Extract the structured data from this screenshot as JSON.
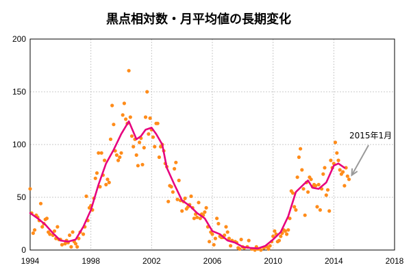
{
  "chart_data": {
    "type": "scatter",
    "title": "黒点相対数・月平均値の長期変化",
    "xlabel": "",
    "ylabel": "",
    "xlim": [
      1994,
      2018
    ],
    "ylim": [
      0,
      200
    ],
    "xticks": [
      1994,
      1998,
      2002,
      2006,
      2010,
      2014,
      2018
    ],
    "yticks": [
      0,
      50,
      100,
      150,
      200
    ],
    "grid": true,
    "colors": {
      "points": "#ff8c1a",
      "line": "#e6007e",
      "arrow": "#999999"
    },
    "annotation": {
      "text": "2015年1月",
      "x": 2015.0,
      "y": 67
    },
    "series": [
      {
        "kind": "points",
        "points": [
          [
            1994.0,
            58
          ],
          [
            1994.1,
            35
          ],
          [
            1994.2,
            16
          ],
          [
            1994.3,
            19
          ],
          [
            1994.4,
            33
          ],
          [
            1994.5,
            31
          ],
          [
            1994.6,
            28
          ],
          [
            1994.7,
            44
          ],
          [
            1994.8,
            22
          ],
          [
            1994.9,
            25
          ],
          [
            1995.0,
            29
          ],
          [
            1995.1,
            30
          ],
          [
            1995.2,
            17
          ],
          [
            1995.3,
            15
          ],
          [
            1995.5,
            14
          ],
          [
            1995.6,
            18
          ],
          [
            1995.7,
            11
          ],
          [
            1995.8,
            22
          ],
          [
            1995.9,
            10
          ],
          [
            1996.0,
            10
          ],
          [
            1996.1,
            5
          ],
          [
            1996.3,
            6
          ],
          [
            1996.4,
            9
          ],
          [
            1996.5,
            7
          ],
          [
            1996.6,
            14
          ],
          [
            1996.7,
            3
          ],
          [
            1996.8,
            17
          ],
          [
            1996.9,
            8
          ],
          [
            1997.0,
            6
          ],
          [
            1997.1,
            3
          ],
          [
            1997.2,
            11
          ],
          [
            1997.3,
            17
          ],
          [
            1997.5,
            15
          ],
          [
            1997.6,
            22
          ],
          [
            1997.7,
            51
          ],
          [
            1997.8,
            28
          ],
          [
            1997.9,
            40
          ],
          [
            1998.0,
            42
          ],
          [
            1998.1,
            38
          ],
          [
            1998.2,
            49
          ],
          [
            1998.3,
            68
          ],
          [
            1998.4,
            73
          ],
          [
            1998.5,
            92
          ],
          [
            1998.6,
            60
          ],
          [
            1998.7,
            92
          ],
          [
            1998.8,
            71
          ],
          [
            1998.9,
            85
          ],
          [
            1999.0,
            62
          ],
          [
            1999.1,
            67
          ],
          [
            1999.2,
            64
          ],
          [
            1999.3,
            105
          ],
          [
            1999.4,
            137
          ],
          [
            1999.5,
            119
          ],
          [
            1999.6,
            94
          ],
          [
            1999.7,
            90
          ],
          [
            1999.8,
            85
          ],
          [
            1999.9,
            88
          ],
          [
            2000.0,
            92
          ],
          [
            2000.1,
            128
          ],
          [
            2000.2,
            139
          ],
          [
            2000.3,
            124
          ],
          [
            2000.4,
            120
          ],
          [
            2000.5,
            170
          ],
          [
            2000.6,
            126
          ],
          [
            2000.7,
            108
          ],
          [
            2000.8,
            98
          ],
          [
            2000.9,
            105
          ],
          [
            2001.0,
            90
          ],
          [
            2001.1,
            80
          ],
          [
            2001.2,
            102
          ],
          [
            2001.3,
            106
          ],
          [
            2001.4,
            81
          ],
          [
            2001.5,
            97
          ],
          [
            2001.6,
            126
          ],
          [
            2001.7,
            150
          ],
          [
            2001.8,
            110
          ],
          [
            2001.9,
            125
          ],
          [
            2002.0,
            114
          ],
          [
            2002.1,
            107
          ],
          [
            2002.2,
            98
          ],
          [
            2002.3,
            120
          ],
          [
            2002.4,
            120
          ],
          [
            2002.5,
            88
          ],
          [
            2002.6,
            98
          ],
          [
            2002.7,
            100
          ],
          [
            2002.8,
            94
          ],
          [
            2002.9,
            82
          ],
          [
            2003.0,
            79
          ],
          [
            2003.1,
            46
          ],
          [
            2003.2,
            61
          ],
          [
            2003.3,
            60
          ],
          [
            2003.4,
            55
          ],
          [
            2003.5,
            77
          ],
          [
            2003.6,
            83
          ],
          [
            2003.7,
            48
          ],
          [
            2003.8,
            66
          ],
          [
            2003.9,
            47
          ],
          [
            2004.0,
            37
          ],
          [
            2004.1,
            46
          ],
          [
            2004.2,
            49
          ],
          [
            2004.3,
            39
          ],
          [
            2004.4,
            41
          ],
          [
            2004.5,
            43
          ],
          [
            2004.6,
            51
          ],
          [
            2004.7,
            40
          ],
          [
            2004.8,
            30
          ],
          [
            2004.9,
            34
          ],
          [
            2005.0,
            31
          ],
          [
            2005.1,
            45
          ],
          [
            2005.2,
            30
          ],
          [
            2005.3,
            34
          ],
          [
            2005.4,
            33
          ],
          [
            2005.5,
            36
          ],
          [
            2005.6,
            40
          ],
          [
            2005.7,
            22
          ],
          [
            2005.8,
            8
          ],
          [
            2005.9,
            17
          ],
          [
            2006.0,
            15
          ],
          [
            2006.1,
            5
          ],
          [
            2006.2,
            11
          ],
          [
            2006.3,
            30
          ],
          [
            2006.4,
            25
          ],
          [
            2006.5,
            13
          ],
          [
            2006.6,
            12
          ],
          [
            2006.7,
            12
          ],
          [
            2006.8,
            14
          ],
          [
            2006.9,
            22
          ],
          [
            2007.0,
            17
          ],
          [
            2007.1,
            11
          ],
          [
            2007.2,
            4
          ],
          [
            2007.3,
            9
          ],
          [
            2007.5,
            8
          ],
          [
            2007.6,
            7
          ],
          [
            2007.7,
            2
          ],
          [
            2007.8,
            1
          ],
          [
            2007.9,
            10
          ],
          [
            2008.0,
            3
          ],
          [
            2008.1,
            2
          ],
          [
            2008.3,
            3
          ],
          [
            2008.4,
            9
          ],
          [
            2008.6,
            1
          ],
          [
            2008.8,
            0
          ],
          [
            2008.9,
            3
          ],
          [
            2009.0,
            1
          ],
          [
            2009.2,
            0
          ],
          [
            2009.4,
            2
          ],
          [
            2009.6,
            3
          ],
          [
            2009.7,
            1
          ],
          [
            2009.8,
            4
          ],
          [
            2009.9,
            8
          ],
          [
            2010.0,
            13
          ],
          [
            2010.1,
            18
          ],
          [
            2010.2,
            15
          ],
          [
            2010.3,
            8
          ],
          [
            2010.4,
            9
          ],
          [
            2010.5,
            13
          ],
          [
            2010.6,
            16
          ],
          [
            2010.7,
            19
          ],
          [
            2010.8,
            18
          ],
          [
            2010.9,
            15
          ],
          [
            2011.0,
            19
          ],
          [
            2011.1,
            30
          ],
          [
            2011.2,
            56
          ],
          [
            2011.3,
            54
          ],
          [
            2011.4,
            41
          ],
          [
            2011.5,
            38
          ],
          [
            2011.6,
            69
          ],
          [
            2011.7,
            88
          ],
          [
            2011.8,
            96
          ],
          [
            2011.9,
            76
          ],
          [
            2012.0,
            58
          ],
          [
            2012.1,
            33
          ],
          [
            2012.2,
            64
          ],
          [
            2012.3,
            55
          ],
          [
            2012.4,
            69
          ],
          [
            2012.5,
            67
          ],
          [
            2012.6,
            60
          ],
          [
            2012.7,
            62
          ],
          [
            2012.8,
            61
          ],
          [
            2012.9,
            41
          ],
          [
            2013.0,
            62
          ],
          [
            2013.1,
            38
          ],
          [
            2013.2,
            58
          ],
          [
            2013.3,
            72
          ],
          [
            2013.4,
            78
          ],
          [
            2013.5,
            52
          ],
          [
            2013.6,
            57
          ],
          [
            2013.7,
            37
          ],
          [
            2013.8,
            85
          ],
          [
            2013.9,
            78
          ],
          [
            2014.0,
            82
          ],
          [
            2014.1,
            102
          ],
          [
            2014.2,
            92
          ],
          [
            2014.3,
            85
          ],
          [
            2014.4,
            76
          ],
          [
            2014.5,
            72
          ],
          [
            2014.6,
            74
          ],
          [
            2014.7,
            61
          ],
          [
            2014.8,
            78
          ],
          [
            2014.9,
            70
          ],
          [
            2015.0,
            67
          ]
        ]
      },
      {
        "kind": "line",
        "points": [
          [
            1994.0,
            35
          ],
          [
            1994.5,
            30
          ],
          [
            1995.0,
            24
          ],
          [
            1995.5,
            16
          ],
          [
            1996.0,
            9
          ],
          [
            1996.5,
            8
          ],
          [
            1997.0,
            10
          ],
          [
            1997.5,
            22
          ],
          [
            1998.0,
            38
          ],
          [
            1998.5,
            62
          ],
          [
            1999.0,
            82
          ],
          [
            1999.5,
            95
          ],
          [
            2000.0,
            110
          ],
          [
            2000.5,
            122
          ],
          [
            2001.0,
            105
          ],
          [
            2001.3,
            108
          ],
          [
            2001.6,
            114
          ],
          [
            2002.0,
            116
          ],
          [
            2002.3,
            110
          ],
          [
            2002.7,
            100
          ],
          [
            2003.0,
            78
          ],
          [
            2003.5,
            62
          ],
          [
            2004.0,
            47
          ],
          [
            2004.5,
            42
          ],
          [
            2005.0,
            35
          ],
          [
            2005.5,
            30
          ],
          [
            2006.0,
            18
          ],
          [
            2006.5,
            15
          ],
          [
            2007.0,
            9
          ],
          [
            2007.5,
            7
          ],
          [
            2008.0,
            3
          ],
          [
            2008.5,
            2
          ],
          [
            2009.0,
            1.5
          ],
          [
            2009.5,
            4
          ],
          [
            2010.0,
            10
          ],
          [
            2010.5,
            17
          ],
          [
            2011.0,
            32
          ],
          [
            2011.5,
            55
          ],
          [
            2012.0,
            62
          ],
          [
            2012.3,
            66
          ],
          [
            2012.6,
            59
          ],
          [
            2013.0,
            58
          ],
          [
            2013.5,
            64
          ],
          [
            2014.0,
            80
          ],
          [
            2014.3,
            82
          ],
          [
            2014.7,
            78
          ]
        ]
      }
    ]
  }
}
